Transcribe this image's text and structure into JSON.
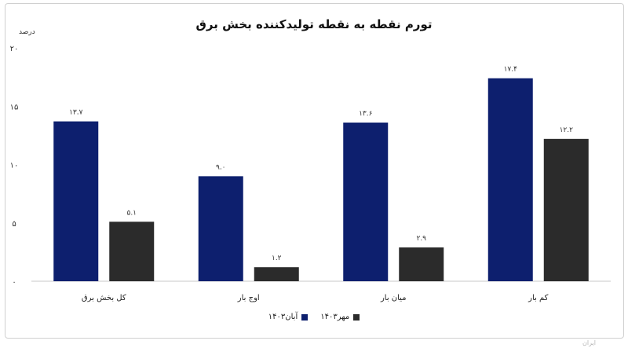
{
  "chart_data": {
    "type": "bar",
    "title": "تورم نقطه به نقطه تولیدکننده بخش برق",
    "ylabel": "درصد",
    "ylim": [
      0,
      20
    ],
    "yticks": [
      "۰",
      "۵",
      "۱۰",
      "۱۵",
      "۲۰"
    ],
    "grid": false,
    "legend_position": "bottom",
    "categories": [
      "کل بخش برق",
      "اوج بار",
      "میان بار",
      "کم بار"
    ],
    "series": [
      {
        "name": "آبان۱۴۰۳",
        "color": "#0d1f6e",
        "values": [
          13.7,
          9.0,
          13.6,
          17.4
        ],
        "labels": [
          "۱۳.۷",
          "۹.۰",
          "۱۳.۶",
          "۱۷.۴"
        ]
      },
      {
        "name": "مهر۱۴۰۳",
        "color": "#2b2b2b",
        "values": [
          5.1,
          1.2,
          2.9,
          12.2
        ],
        "labels": [
          "۵.۱",
          "۱.۲",
          "۲.۹",
          "۱۲.۲"
        ]
      }
    ]
  },
  "credit": "ایران"
}
